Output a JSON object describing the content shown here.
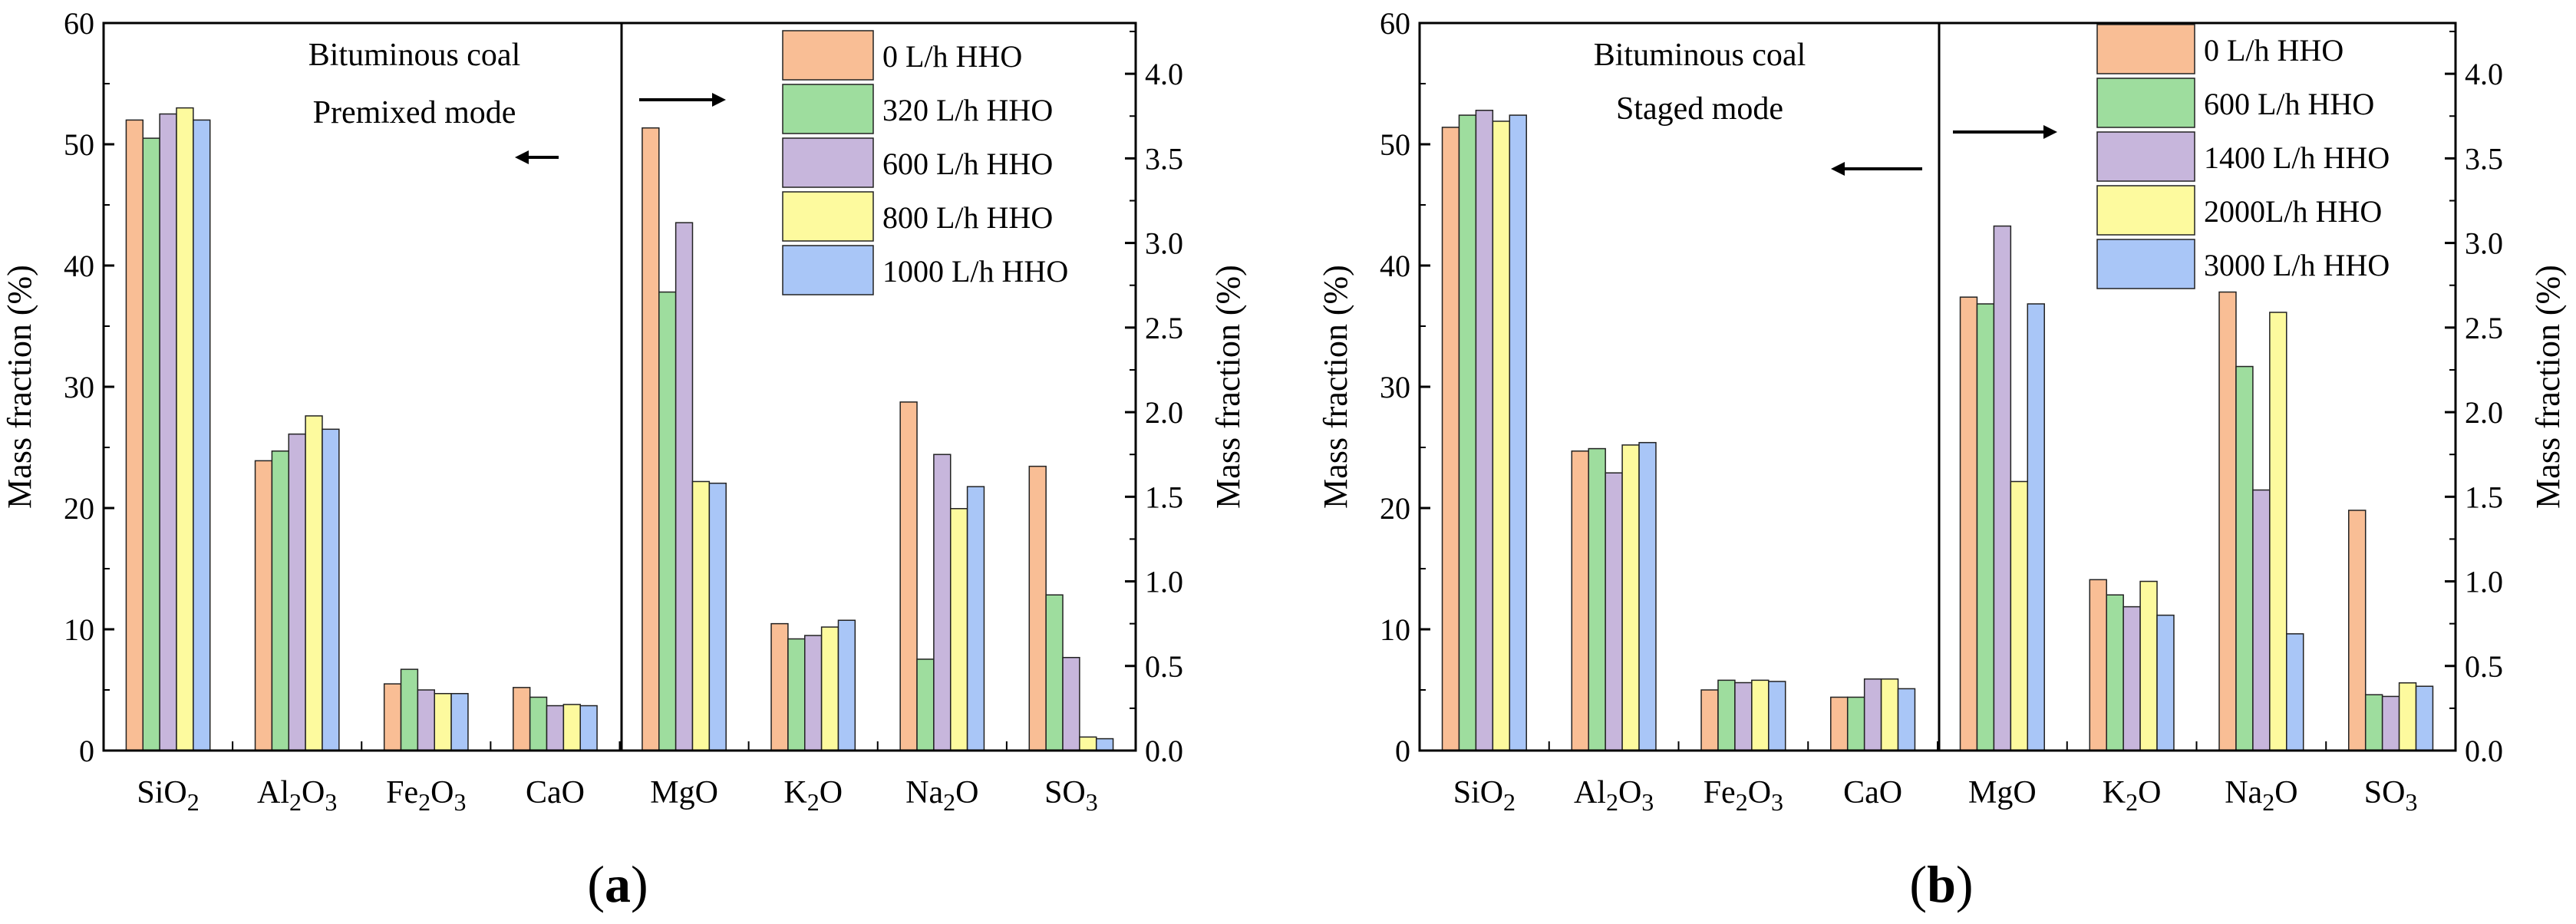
{
  "figure": {
    "panels": [
      "a",
      "b"
    ]
  },
  "chart_data": [
    {
      "id": "a",
      "type": "bar",
      "panel_label": "a",
      "annotation_lines": [
        "Bituminous coal",
        "Premixed mode"
      ],
      "ylabel_left": "Mass fraction (%)",
      "ylabel_right": "Mass fraction (%)",
      "ylim_left": [
        0,
        60
      ],
      "ylim_right": [
        0,
        4.3
      ],
      "yticks_left": [
        "0",
        "10",
        "20",
        "30",
        "40",
        "50",
        "60"
      ],
      "yticks_left_values": [
        0,
        10,
        20,
        30,
        40,
        50,
        60
      ],
      "yticks_right": [
        "0.0",
        "0.5",
        "1.0",
        "1.5",
        "2.0",
        "2.5",
        "3.0",
        "3.5",
        "4.0"
      ],
      "yticks_right_values": [
        0,
        0.5,
        1.0,
        1.5,
        2.0,
        2.5,
        3.0,
        3.5,
        4.0
      ],
      "categories": [
        {
          "base": "SiO",
          "sub": "2",
          "suffix": ""
        },
        {
          "base": "Al",
          "sub": "2",
          "suffix": "O",
          "sub2": "3"
        },
        {
          "base": "Fe",
          "sub": "2",
          "suffix": "O",
          "sub2": "3"
        },
        {
          "base": "CaO",
          "sub": "",
          "suffix": ""
        },
        {
          "base": "MgO",
          "sub": "",
          "suffix": ""
        },
        {
          "base": "K",
          "sub": "2",
          "suffix": "O"
        },
        {
          "base": "Na",
          "sub": "2",
          "suffix": "O"
        },
        {
          "base": "SO",
          "sub": "3",
          "suffix": ""
        }
      ],
      "axis_assignment": [
        "left",
        "left",
        "left",
        "left",
        "right",
        "right",
        "right",
        "right"
      ],
      "series": [
        {
          "name": "0 L/h HHO",
          "color": "#F9BE95",
          "values": [
            52.0,
            23.9,
            5.5,
            5.2,
            3.68,
            0.75,
            2.06,
            1.68
          ]
        },
        {
          "name": "320 L/h HHO",
          "color": "#9EDD9E",
          "values": [
            50.5,
            24.7,
            6.7,
            4.4,
            2.71,
            0.66,
            0.54,
            0.92
          ]
        },
        {
          "name": "600 L/h HHO",
          "color": "#C7B6DC",
          "values": [
            52.5,
            26.1,
            5.0,
            3.7,
            3.12,
            0.68,
            1.75,
            0.55
          ]
        },
        {
          "name": "800 L/h HHO",
          "color": "#FDFA9E",
          "values": [
            53.0,
            27.6,
            4.7,
            3.8,
            1.59,
            0.73,
            1.43,
            0.08
          ]
        },
        {
          "name": "1000 L/h HHO",
          "color": "#A9C6F7",
          "values": [
            52.0,
            26.5,
            4.7,
            3.7,
            1.58,
            0.77,
            1.56,
            0.07
          ]
        }
      ],
      "arrow_left_direction": "left",
      "arrow_right_direction": "right",
      "legend_position": "top-right"
    },
    {
      "id": "b",
      "type": "bar",
      "panel_label": "b",
      "annotation_lines": [
        "Bituminous coal",
        "Staged mode"
      ],
      "ylabel_left": "Mass fraction (%)",
      "ylabel_right": "Mass fraction (%)",
      "ylim_left": [
        0,
        60
      ],
      "ylim_right": [
        0,
        4.3
      ],
      "yticks_left": [
        "0",
        "10",
        "20",
        "30",
        "40",
        "50",
        "60"
      ],
      "yticks_left_values": [
        0,
        10,
        20,
        30,
        40,
        50,
        60
      ],
      "yticks_right": [
        "0.0",
        "0.5",
        "1.0",
        "1.5",
        "2.0",
        "2.5",
        "3.0",
        "3.5",
        "4.0"
      ],
      "yticks_right_values": [
        0,
        0.5,
        1.0,
        1.5,
        2.0,
        2.5,
        3.0,
        3.5,
        4.0
      ],
      "categories": [
        {
          "base": "SiO",
          "sub": "2",
          "suffix": ""
        },
        {
          "base": "Al",
          "sub": "2",
          "suffix": "O",
          "sub2": "3"
        },
        {
          "base": "Fe",
          "sub": "2",
          "suffix": "O",
          "sub2": "3"
        },
        {
          "base": "CaO",
          "sub": "",
          "suffix": ""
        },
        {
          "base": "MgO",
          "sub": "",
          "suffix": ""
        },
        {
          "base": "K",
          "sub": "2",
          "suffix": "O"
        },
        {
          "base": "Na",
          "sub": "2",
          "suffix": "O"
        },
        {
          "base": "SO",
          "sub": "3",
          "suffix": ""
        }
      ],
      "axis_assignment": [
        "left",
        "left",
        "left",
        "left",
        "right",
        "right",
        "right",
        "right"
      ],
      "series": [
        {
          "name": "0 L/h HHO",
          "color": "#F9BE95",
          "values": [
            51.4,
            24.7,
            5.0,
            4.4,
            2.68,
            1.01,
            2.71,
            1.42
          ]
        },
        {
          "name": "600 L/h HHO",
          "color": "#9EDD9E",
          "values": [
            52.4,
            24.9,
            5.8,
            4.4,
            2.64,
            0.92,
            2.27,
            0.33
          ]
        },
        {
          "name": "1400 L/h HHO",
          "color": "#C7B6DC",
          "values": [
            52.8,
            22.9,
            5.6,
            5.9,
            3.1,
            0.85,
            1.54,
            0.32
          ]
        },
        {
          "name": "2000L/h HHO",
          "color": "#FDFA9E",
          "values": [
            51.9,
            25.2,
            5.8,
            5.9,
            1.59,
            1.0,
            2.59,
            0.4
          ]
        },
        {
          "name": "3000 L/h HHO",
          "color": "#A9C6F7",
          "values": [
            52.4,
            25.4,
            5.7,
            5.1,
            2.64,
            0.8,
            0.69,
            0.38
          ]
        }
      ],
      "arrow_left_direction": "left",
      "arrow_right_direction": "right",
      "legend_position": "top-right"
    }
  ]
}
